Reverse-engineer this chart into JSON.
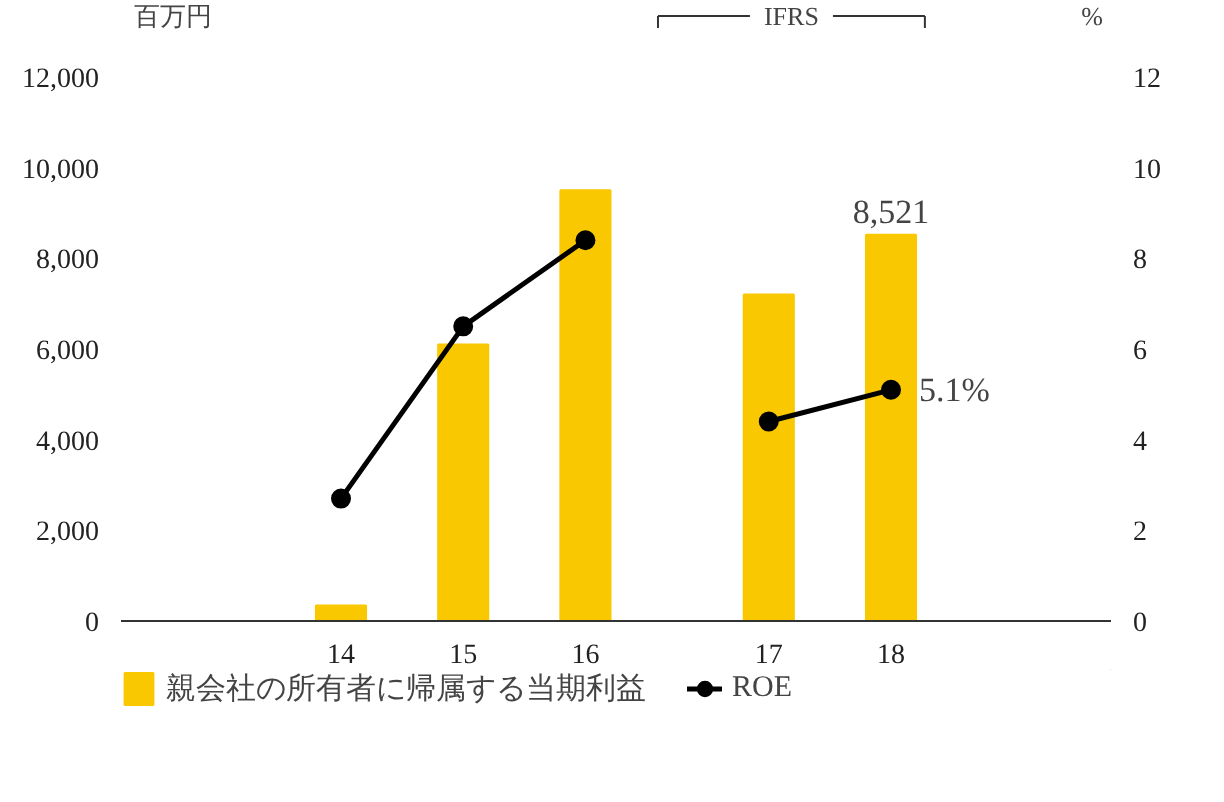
{
  "chart_data": {
    "type": "bar",
    "ylabel": "百万円",
    "y2label": "%",
    "x": [
      14,
      15,
      16,
      17.5,
      18.5
    ],
    "xlim": [
      12.2,
      20.3
    ],
    "xticks": [
      {
        "value": 14,
        "label": "14"
      },
      {
        "value": 15,
        "label": "15"
      },
      {
        "value": 16,
        "label": "16"
      },
      {
        "value": 17.5,
        "label": "17"
      },
      {
        "value": 18.5,
        "label": "18"
      }
    ],
    "ylim": [
      0,
      12000
    ],
    "yticks": [
      {
        "value": 0,
        "label": "0"
      },
      {
        "value": 2000,
        "label": "2,000"
      },
      {
        "value": 4000,
        "label": "4,000"
      },
      {
        "value": 6000,
        "label": "6,000"
      },
      {
        "value": 8000,
        "label": "8,000"
      },
      {
        "value": 10000,
        "label": "10,000"
      },
      {
        "value": 12000,
        "label": "12,000"
      }
    ],
    "y2lim": [
      0,
      12
    ],
    "y2ticks": [
      0,
      2,
      4,
      6,
      8,
      10,
      12
    ],
    "series": [
      {
        "name": "親会社の所有者に帰属する当期利益",
        "type": "bar",
        "color": "#fac800",
        "values": [
          340,
          6100,
          9500,
          7200,
          8521
        ],
        "value_labels": [
          null,
          null,
          null,
          null,
          "8,521"
        ]
      },
      {
        "name": "ROE",
        "type": "line",
        "axis": "y2",
        "color": "#000000",
        "marker": "circle",
        "x": [
          14,
          15,
          16,
          16.75,
          17.5,
          18.5
        ],
        "values": [
          2.7,
          6.5,
          8.4,
          null,
          4.4,
          5.1
        ],
        "value_labels": [
          null,
          null,
          null,
          null,
          null,
          "5.1%"
        ]
      }
    ],
    "annotations": [
      "IFRS"
    ],
    "grid": false,
    "legend": "bottom left"
  }
}
